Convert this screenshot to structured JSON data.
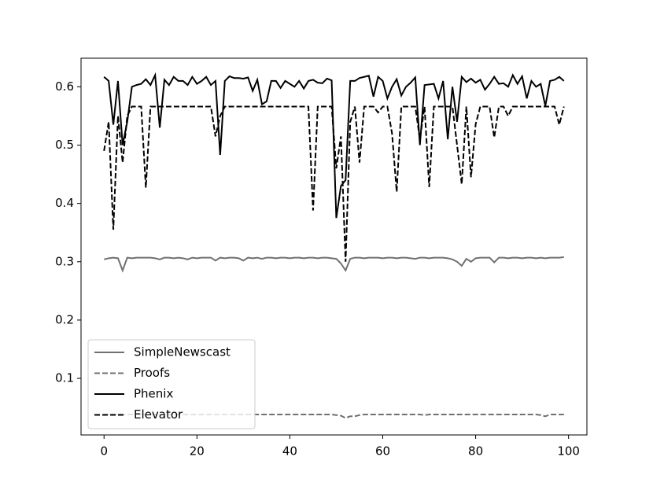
{
  "chart_data": {
    "type": "line",
    "x": [
      0,
      1,
      2,
      3,
      4,
      5,
      6,
      7,
      8,
      9,
      10,
      11,
      12,
      13,
      14,
      15,
      16,
      17,
      18,
      19,
      20,
      21,
      22,
      23,
      24,
      25,
      26,
      27,
      28,
      29,
      30,
      31,
      32,
      33,
      34,
      35,
      36,
      37,
      38,
      39,
      40,
      41,
      42,
      43,
      44,
      45,
      46,
      47,
      48,
      49,
      50,
      51,
      52,
      53,
      54,
      55,
      56,
      57,
      58,
      59,
      60,
      61,
      62,
      63,
      64,
      65,
      66,
      67,
      68,
      69,
      70,
      71,
      72,
      73,
      74,
      75,
      76,
      77,
      78,
      79,
      80,
      81,
      82,
      83,
      84,
      85,
      86,
      87,
      88,
      89,
      90,
      91,
      92,
      93,
      94,
      95,
      96,
      97,
      98,
      99
    ],
    "xlim": [
      -4.95,
      103.95
    ],
    "xticks": [
      0,
      20,
      40,
      60,
      80,
      100
    ],
    "ylim": [
      0.003,
      0.649
    ],
    "yticks": [
      0.1,
      0.2,
      0.3,
      0.4,
      0.5,
      0.6
    ],
    "legend": "lower left",
    "series": [
      {
        "name": "SimpleNewscast",
        "color": "#707070",
        "linestyle": "solid",
        "values": [
          0.304,
          0.306,
          0.307,
          0.306,
          0.285,
          0.307,
          0.306,
          0.307,
          0.307,
          0.307,
          0.307,
          0.306,
          0.304,
          0.307,
          0.307,
          0.306,
          0.307,
          0.306,
          0.304,
          0.307,
          0.306,
          0.307,
          0.307,
          0.307,
          0.302,
          0.307,
          0.306,
          0.307,
          0.307,
          0.306,
          0.302,
          0.307,
          0.306,
          0.307,
          0.305,
          0.307,
          0.307,
          0.306,
          0.307,
          0.307,
          0.306,
          0.307,
          0.307,
          0.306,
          0.307,
          0.307,
          0.306,
          0.307,
          0.307,
          0.306,
          0.305,
          0.297,
          0.285,
          0.305,
          0.307,
          0.307,
          0.306,
          0.307,
          0.307,
          0.307,
          0.306,
          0.307,
          0.307,
          0.306,
          0.307,
          0.307,
          0.306,
          0.305,
          0.307,
          0.307,
          0.306,
          0.307,
          0.307,
          0.307,
          0.306,
          0.304,
          0.3,
          0.293,
          0.305,
          0.3,
          0.306,
          0.307,
          0.307,
          0.307,
          0.299,
          0.307,
          0.307,
          0.306,
          0.307,
          0.307,
          0.306,
          0.307,
          0.307,
          0.306,
          0.307,
          0.306,
          0.307,
          0.307,
          0.307,
          0.308
        ]
      },
      {
        "name": "Proofs",
        "color": "#707070",
        "linestyle": "dashed",
        "values": [
          0.038,
          0.038,
          0.038,
          0.038,
          0.038,
          0.038,
          0.038,
          0.038,
          0.038,
          0.038,
          0.038,
          0.038,
          0.038,
          0.038,
          0.038,
          0.038,
          0.038,
          0.038,
          0.038,
          0.038,
          0.038,
          0.038,
          0.038,
          0.038,
          0.038,
          0.038,
          0.038,
          0.038,
          0.038,
          0.038,
          0.038,
          0.038,
          0.038,
          0.038,
          0.038,
          0.038,
          0.038,
          0.038,
          0.038,
          0.038,
          0.038,
          0.038,
          0.038,
          0.038,
          0.038,
          0.038,
          0.038,
          0.038,
          0.038,
          0.038,
          0.037,
          0.036,
          0.032,
          0.035,
          0.035,
          0.037,
          0.038,
          0.038,
          0.038,
          0.038,
          0.038,
          0.038,
          0.038,
          0.038,
          0.038,
          0.038,
          0.038,
          0.038,
          0.038,
          0.037,
          0.038,
          0.038,
          0.038,
          0.038,
          0.038,
          0.038,
          0.038,
          0.038,
          0.038,
          0.038,
          0.038,
          0.038,
          0.038,
          0.038,
          0.038,
          0.038,
          0.038,
          0.038,
          0.038,
          0.038,
          0.038,
          0.038,
          0.038,
          0.038,
          0.037,
          0.035,
          0.038,
          0.038,
          0.038,
          0.038
        ]
      },
      {
        "name": "Phenix",
        "color": "#000000",
        "linestyle": "solid",
        "values": [
          0.617,
          0.61,
          0.535,
          0.61,
          0.5,
          0.54,
          0.6,
          0.603,
          0.605,
          0.613,
          0.603,
          0.62,
          0.53,
          0.612,
          0.603,
          0.617,
          0.61,
          0.61,
          0.603,
          0.617,
          0.605,
          0.61,
          0.617,
          0.603,
          0.61,
          0.483,
          0.61,
          0.618,
          0.615,
          0.615,
          0.614,
          0.616,
          0.593,
          0.612,
          0.57,
          0.575,
          0.61,
          0.61,
          0.598,
          0.61,
          0.605,
          0.6,
          0.61,
          0.597,
          0.61,
          0.612,
          0.607,
          0.606,
          0.614,
          0.611,
          0.375,
          0.43,
          0.44,
          0.61,
          0.61,
          0.615,
          0.617,
          0.619,
          0.583,
          0.617,
          0.61,
          0.58,
          0.6,
          0.613,
          0.585,
          0.6,
          0.607,
          0.616,
          0.5,
          0.603,
          0.604,
          0.605,
          0.58,
          0.61,
          0.51,
          0.6,
          0.54,
          0.617,
          0.608,
          0.614,
          0.607,
          0.612,
          0.595,
          0.605,
          0.617,
          0.605,
          0.606,
          0.6,
          0.62,
          0.605,
          0.618,
          0.58,
          0.61,
          0.6,
          0.605,
          0.567,
          0.61,
          0.612,
          0.617,
          0.61
        ]
      },
      {
        "name": "Elevator",
        "color": "#000000",
        "linestyle": "dashed",
        "values": [
          0.49,
          0.54,
          0.355,
          0.55,
          0.47,
          0.55,
          0.566,
          0.566,
          0.566,
          0.427,
          0.566,
          0.566,
          0.566,
          0.566,
          0.566,
          0.566,
          0.566,
          0.566,
          0.566,
          0.566,
          0.566,
          0.566,
          0.566,
          0.566,
          0.515,
          0.55,
          0.566,
          0.566,
          0.566,
          0.566,
          0.566,
          0.566,
          0.566,
          0.566,
          0.566,
          0.566,
          0.566,
          0.566,
          0.566,
          0.566,
          0.566,
          0.566,
          0.566,
          0.566,
          0.566,
          0.388,
          0.566,
          0.566,
          0.566,
          0.566,
          0.46,
          0.515,
          0.3,
          0.54,
          0.566,
          0.47,
          0.566,
          0.566,
          0.566,
          0.556,
          0.566,
          0.566,
          0.52,
          0.42,
          0.566,
          0.566,
          0.566,
          0.566,
          0.51,
          0.566,
          0.428,
          0.566,
          0.566,
          0.566,
          0.566,
          0.566,
          0.5,
          0.433,
          0.566,
          0.445,
          0.536,
          0.566,
          0.566,
          0.566,
          0.513,
          0.566,
          0.566,
          0.55,
          0.566,
          0.566,
          0.566,
          0.566,
          0.566,
          0.566,
          0.566,
          0.566,
          0.566,
          0.566,
          0.535,
          0.566
        ]
      }
    ]
  }
}
